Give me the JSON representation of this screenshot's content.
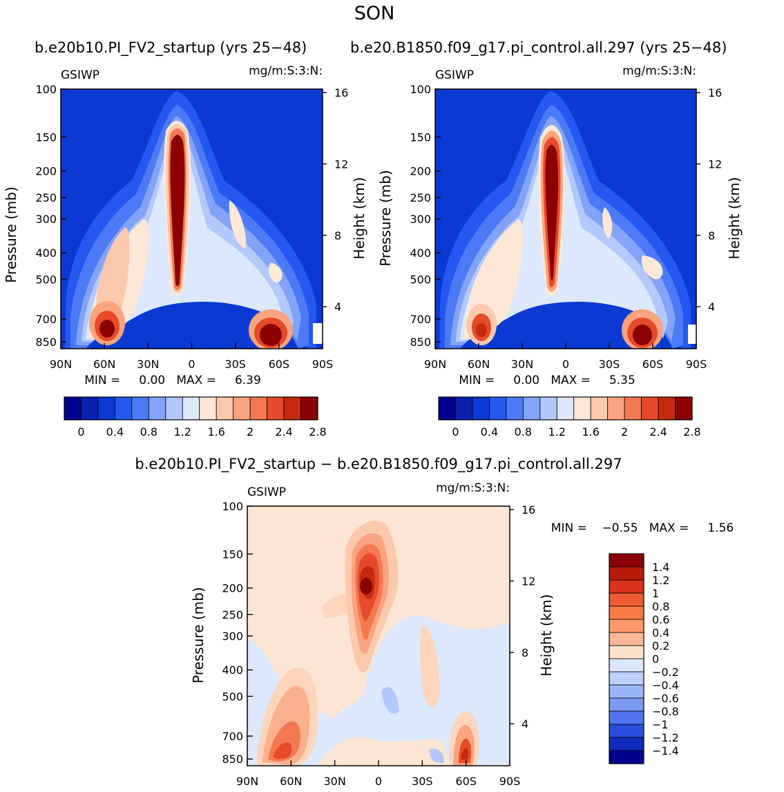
{
  "page_title": "SON",
  "panel_titles": {
    "left": "b.e20b10.PI_FV2_startup (yrs 25−48)",
    "right": "b.e20.B1850.f09_g17.pi_control.all.297 (yrs 25−48)"
  },
  "chart_data": [
    {
      "type": "heatmap",
      "title": "b.e20b10.PI_FV2_startup (yrs 25−48)",
      "variable": "GSIWP",
      "units": "mg/m:S:3:N:",
      "xlabel": "",
      "ylabel": "Pressure (mb)",
      "y2label": "Height (km)",
      "x_ticks": [
        "90N",
        "60N",
        "30N",
        "0",
        "30S",
        "60S",
        "90S"
      ],
      "y_ticks": [
        "100",
        "150",
        "200",
        "250",
        "300",
        "400",
        "500",
        "700",
        "850"
      ],
      "y_tick_values": [
        100,
        150,
        200,
        250,
        300,
        400,
        500,
        700,
        850
      ],
      "y2_ticks": [
        "16",
        "12",
        "8",
        "4"
      ],
      "stats_text": "MIN =     0.00   MAX =     6.39",
      "min": 0.0,
      "max": 6.39,
      "colorbar_labels": [
        "0",
        "0.4",
        "0.8",
        "1.2",
        "1.6",
        "2",
        "2.4",
        "2.8"
      ],
      "colorbar_colors": [
        "#00008f",
        "#0a1fb0",
        "#0a3ad2",
        "#2458f0",
        "#4c7af5",
        "#82a3f7",
        "#b3c9fb",
        "#dbe8fd",
        "#fde8d8",
        "#fcc9ad",
        "#f9a47f",
        "#f47850",
        "#e74a28",
        "#c42b0e",
        "#8b0000"
      ],
      "features": [
        {
          "label": "tropical column maximum",
          "lat": 10,
          "p_top": 160,
          "p_bottom": 520,
          "level": 14
        },
        {
          "label": "NH midlatitude low-level maximum",
          "lat": 62,
          "p": 830,
          "level": 12
        },
        {
          "label": "SH midlatitude low-level maximum",
          "lat": -58,
          "p": 840,
          "level": 14
        }
      ]
    },
    {
      "type": "heatmap",
      "title": "b.e20.B1850.f09_g17.pi_control.all.297 (yrs 25−48)",
      "variable": "GSIWP",
      "units": "mg/m:S:3:N:",
      "xlabel": "",
      "ylabel": "Pressure (mb)",
      "y2label": "Height (km)",
      "x_ticks": [
        "90N",
        "60N",
        "30N",
        "0",
        "30S",
        "60S",
        "90S"
      ],
      "y_ticks": [
        "100",
        "150",
        "200",
        "250",
        "300",
        "400",
        "500",
        "700",
        "850"
      ],
      "y_tick_values": [
        100,
        150,
        200,
        250,
        300,
        400,
        500,
        700,
        850
      ],
      "y2_ticks": [
        "16",
        "12",
        "8",
        "4"
      ],
      "stats_text": "MIN =     0.00   MAX =     5.35",
      "min": 0.0,
      "max": 5.35,
      "colorbar_labels": [
        "0",
        "0.4",
        "0.8",
        "1.2",
        "1.6",
        "2",
        "2.4",
        "2.8"
      ],
      "colorbar_colors": [
        "#00008f",
        "#0a1fb0",
        "#0a3ad2",
        "#2458f0",
        "#4c7af5",
        "#82a3f7",
        "#b3c9fb",
        "#dbe8fd",
        "#fde8d8",
        "#fcc9ad",
        "#f9a47f",
        "#f47850",
        "#e74a28",
        "#c42b0e",
        "#8b0000"
      ],
      "features": [
        {
          "label": "tropical column maximum",
          "lat": 10,
          "p_top": 170,
          "p_bottom": 500,
          "level": 14
        },
        {
          "label": "NH midlatitude low-level maximum",
          "lat": 62,
          "p": 830,
          "level": 11
        },
        {
          "label": "SH midlatitude low-level maximum",
          "lat": -55,
          "p": 840,
          "level": 14
        }
      ]
    },
    {
      "type": "heatmap",
      "title": "b.e20b10.PI_FV2_startup − b.e20.B1850.f09_g17.pi_control.all.297",
      "variable": "GSIWP",
      "units": "mg/m:S:3:N:",
      "xlabel": "",
      "ylabel": "Pressure (mb)",
      "y2label": "Height (km)",
      "x_ticks": [
        "90N",
        "60N",
        "30N",
        "0",
        "30S",
        "60S",
        "90S"
      ],
      "y_ticks": [
        "100",
        "150",
        "200",
        "250",
        "300",
        "400",
        "500",
        "700",
        "850"
      ],
      "y_tick_values": [
        100,
        150,
        200,
        250,
        300,
        400,
        500,
        700,
        850
      ],
      "y2_ticks": [
        "16",
        "12",
        "8",
        "4"
      ],
      "stats_text": "MIN =    −0.55   MAX =     1.56",
      "min": -0.55,
      "max": 1.56,
      "colorbar_labels": [
        "1.4",
        "1.2",
        "1",
        "0.8",
        "0.6",
        "0.4",
        "0.2",
        "0",
        "−0.2",
        "−0.4",
        "−0.6",
        "−0.8",
        "−1",
        "−1.2",
        "−1.4"
      ],
      "colorbar_colors": [
        "#8b0000",
        "#b71c0b",
        "#d9331a",
        "#ef5a32",
        "#fa7a46",
        "#fb9b6b",
        "#fcb894",
        "#fde0cc",
        "#dbe8fd",
        "#bcd0fb",
        "#9ab6f8",
        "#7a9af4",
        "#4f74ee",
        "#2a4fdc",
        "#0d2bbf",
        "#00008f"
      ],
      "features": [
        {
          "label": "upper tropical positive difference",
          "lat": 10,
          "p": 200,
          "value": 1.56
        },
        {
          "label": "NH low-level positive difference",
          "lat": 65,
          "p": 820,
          "value": 1.0
        },
        {
          "label": "SH low-level positive difference",
          "lat": -60,
          "p": 840,
          "value": 1.2
        }
      ]
    }
  ]
}
